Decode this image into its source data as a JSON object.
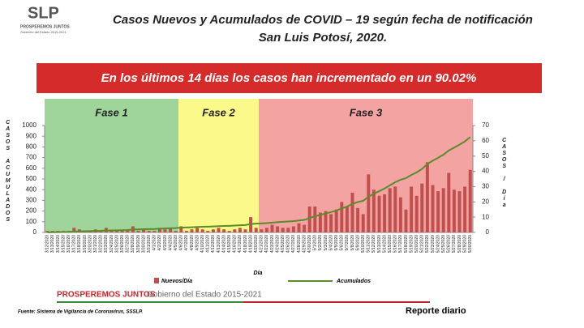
{
  "header": {
    "logo": "SLP",
    "logo_tagline": "PROSPEREMOS JUNTOS",
    "logo_sub": "Gobierno del Estado 2015-2021"
  },
  "banner": "En los últimos 14 días los casos han incrementado en un 90.02%",
  "chart_data": {
    "type": "bar-line",
    "title": "Casos Nuevos y Acumulados de COVID – 19 según fecha de notificación",
    "subtitle": "San Luis Potosí, 2020.",
    "x_label": "Día",
    "y_label": "CASOS ACUMULADOS",
    "y2_label": "CASOS / Día",
    "categories": [
      "3/12/2020",
      "3/13/2020",
      "3/14/2020",
      "3/15/2020",
      "3/16/2020",
      "3/17/2020",
      "3/18/2020",
      "3/19/2020",
      "3/20/2020",
      "3/21/2020",
      "3/22/2020",
      "3/23/2020",
      "3/24/2020",
      "3/25/2020",
      "3/26/2020",
      "3/27/2020",
      "3/28/2020",
      "3/29/2020",
      "3/30/2020",
      "3/31/2020",
      "4/1/2020",
      "4/2/2020",
      "4/3/2020",
      "4/4/2020",
      "4/5/2020",
      "4/6/2020",
      "4/7/2020",
      "4/8/2020",
      "4/9/2020",
      "4/10/2020",
      "4/11/2020",
      "4/12/2020",
      "4/13/2020",
      "4/14/2020",
      "4/15/2020",
      "4/16/2020",
      "4/17/2020",
      "4/18/2020",
      "4/19/2020",
      "4/20/2020",
      "4/21/2020",
      "4/22/2020",
      "4/23/2020",
      "4/24/2020",
      "4/25/2020",
      "4/26/2020",
      "4/27/2020",
      "4/28/2020",
      "4/29/2020",
      "4/30/2020",
      "5/1/2020",
      "5/2/2020",
      "5/3/2020",
      "5/4/2020",
      "5/5/2020",
      "5/6/2020",
      "5/7/2020",
      "5/8/2020",
      "5/9/2020",
      "5/10/2020",
      "5/11/2020",
      "5/12/2020",
      "5/13/2020",
      "5/14/2020",
      "5/15/2020",
      "5/16/2020",
      "5/17/2020",
      "5/18/2020",
      "5/19/2020",
      "5/20/2020",
      "5/21/2020",
      "5/22/2020",
      "5/23/2020",
      "5/24/2020",
      "5/25/2020",
      "5/26/2020",
      "5/27/2020",
      "5/28/2020",
      "5/29/2020",
      "5/30/2020"
    ],
    "series": [
      {
        "name": "Nuevos/Día",
        "type": "bar",
        "axis": "y2",
        "color": "#c0504d",
        "values": [
          1,
          1,
          1,
          1,
          1,
          3,
          2,
          1,
          1,
          2,
          1,
          3,
          1,
          1,
          1,
          2,
          4,
          1,
          2,
          1,
          1,
          3,
          2,
          3,
          1,
          4,
          1,
          2,
          3,
          2,
          1,
          2,
          3,
          2,
          1,
          2,
          3,
          2,
          10,
          3,
          2,
          3,
          5,
          4,
          3,
          3,
          4,
          6,
          5,
          17,
          17,
          13,
          14,
          12,
          15,
          20,
          17,
          26,
          16,
          12,
          38,
          28,
          24,
          25,
          29,
          30,
          23,
          15,
          30,
          24,
          32,
          46,
          31,
          27,
          29,
          39,
          28,
          27,
          30,
          41
        ]
      },
      {
        "name": "Acumulados",
        "type": "line",
        "color": "#5b8c2a",
        "values": [
          1,
          2,
          3,
          4,
          5,
          8,
          10,
          11,
          12,
          14,
          15,
          18,
          19,
          20,
          21,
          23,
          27,
          28,
          30,
          31,
          32,
          35,
          37,
          40,
          41,
          45,
          46,
          48,
          51,
          53,
          54,
          56,
          59,
          61,
          62,
          64,
          67,
          69,
          79,
          82,
          84,
          87,
          92,
          96,
          99,
          102,
          106,
          112,
          117,
          134,
          151,
          164,
          178,
          190,
          205,
          225,
          242,
          268,
          284,
          296,
          334,
          362,
          386,
          411,
          440,
          470,
          493,
          508,
          538,
          562,
          594,
          640,
          671,
          698,
          727,
          766,
          794,
          821,
          851,
          892
        ]
      }
    ],
    "ylim": [
      0,
      1000
    ],
    "yticks": [
      0,
      100,
      200,
      300,
      400,
      500,
      600,
      700,
      800,
      900,
      1000
    ],
    "y2lim": [
      0,
      70
    ],
    "y2ticks": [
      0,
      10,
      20,
      30,
      40,
      50,
      60,
      70
    ],
    "phases": [
      {
        "label": "Fase 1",
        "start": "3/12/2020",
        "end": "4/5/2020",
        "color": "#9fd49b"
      },
      {
        "label": "Fase 2",
        "start": "4/6/2020",
        "end": "4/20/2020",
        "color": "#fbf98a"
      },
      {
        "label": "Fase 3",
        "start": "4/21/2020",
        "end": "5/30/2020",
        "color": "#f4a3a3"
      }
    ]
  },
  "footer": {
    "brand": "PROSPEREMOS JUNTOS",
    "government": "Gobierno del Estado 2015-2021",
    "source": "Fuente: Sistema de Vigilancia de Coronavirus, SSSLP.",
    "report": "Reporte diario"
  }
}
